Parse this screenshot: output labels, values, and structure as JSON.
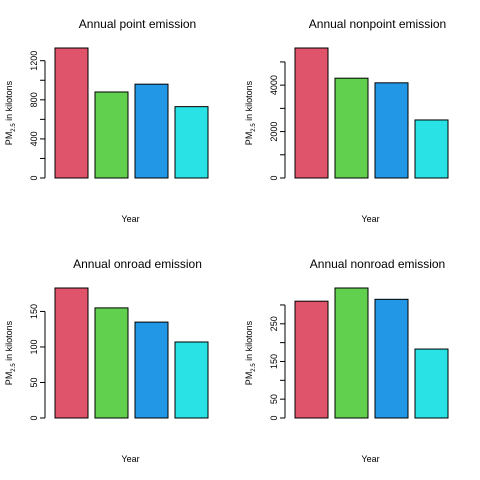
{
  "chart_data": [
    {
      "type": "bar",
      "title": "Annual point emission",
      "xlabel": "Year",
      "ylabel_main": "PM",
      "ylabel_sub": "2.5",
      "ylabel_rest": " in kilotons",
      "values": [
        1330,
        880,
        960,
        730
      ],
      "colors": [
        "#DF536B",
        "#61D04F",
        "#2297E6",
        "#28E2E5"
      ],
      "ylim": [
        0,
        1330
      ],
      "yticks": [
        0,
        400,
        800,
        1200
      ],
      "yticks_minor": [
        200,
        600,
        1000
      ]
    },
    {
      "type": "bar",
      "title": "Annual nonpoint emission",
      "xlabel": "Year",
      "ylabel_main": "PM",
      "ylabel_sub": "2.5",
      "ylabel_rest": " in kilotons",
      "values": [
        5600,
        4300,
        4100,
        2500
      ],
      "colors": [
        "#DF536B",
        "#61D04F",
        "#2297E6",
        "#28E2E5"
      ],
      "ylim": [
        0,
        5600
      ],
      "yticks": [
        0,
        2000,
        4000
      ],
      "yticks_minor": [
        1000,
        3000,
        5000
      ]
    },
    {
      "type": "bar",
      "title": "Annual onroad emission",
      "xlabel": "Year",
      "ylabel_main": "PM",
      "ylabel_sub": "2.5",
      "ylabel_rest": " in kilotons",
      "values": [
        183,
        155,
        135,
        107
      ],
      "colors": [
        "#DF536B",
        "#61D04F",
        "#2297E6",
        "#28E2E5"
      ],
      "ylim": [
        0,
        183
      ],
      "yticks": [
        0,
        50,
        100,
        150
      ],
      "yticks_minor": []
    },
    {
      "type": "bar",
      "title": "Annual nonroad emission",
      "xlabel": "Year",
      "ylabel_main": "PM",
      "ylabel_sub": "2.5",
      "ylabel_rest": " in kilotons",
      "values": [
        310,
        345,
        315,
        183
      ],
      "colors": [
        "#DF536B",
        "#61D04F",
        "#2297E6",
        "#28E2E5"
      ],
      "ylim": [
        0,
        345
      ],
      "yticks": [
        0,
        50,
        150,
        250
      ],
      "yticks_minor": [
        100,
        200,
        300
      ]
    }
  ]
}
